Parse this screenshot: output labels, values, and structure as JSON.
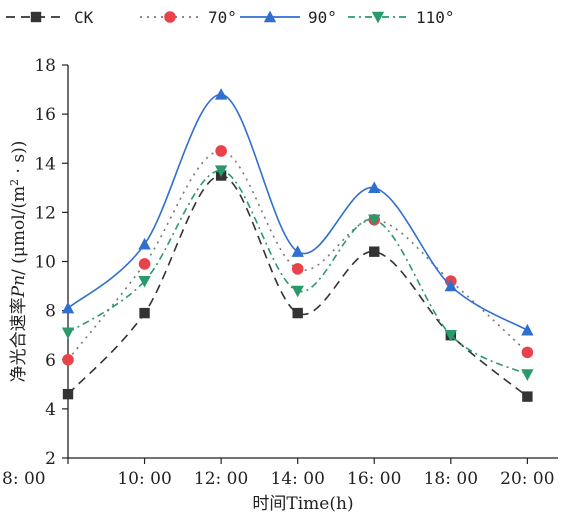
{
  "chart_data": {
    "type": "line",
    "xlabel": "时间Time(h)",
    "ylabel_parts": [
      "净光合速率",
      "Pn",
      "/ (μmol/(m",
      "2",
      " · s))"
    ],
    "x": [
      8,
      10,
      12,
      14,
      16,
      18,
      20
    ],
    "x_tick_labels": [
      "8: 00",
      "10: 00",
      "12: 00",
      "14: 00",
      "16: 00",
      "18: 00",
      "20: 00"
    ],
    "xlim": [
      8,
      20.8
    ],
    "ylim": [
      2,
      18
    ],
    "y_ticks": [
      2,
      4,
      6,
      8,
      10,
      12,
      14,
      16,
      18
    ],
    "y_tick_labels": [
      "2",
      "4",
      "6",
      "8",
      "10",
      "12",
      "14",
      "16",
      "18"
    ],
    "grid": false,
    "legend_position": "top",
    "series": [
      {
        "name": "CK",
        "values": [
          4.6,
          7.9,
          13.5,
          7.9,
          10.4,
          7.0,
          4.5
        ],
        "color": "#333333",
        "marker": "square",
        "dash": "9,6"
      },
      {
        "name": "70°",
        "values": [
          6.0,
          9.9,
          14.5,
          9.7,
          11.7,
          9.2,
          6.3
        ],
        "color": "#e8434a",
        "marker": "circle",
        "dash": "2,5",
        "line_color": "#777777"
      },
      {
        "name": "90°",
        "values": [
          8.1,
          10.7,
          16.8,
          10.4,
          13.0,
          9.0,
          7.2
        ],
        "color": "#2f6fd0",
        "marker": "triangle-up",
        "dash": ""
      },
      {
        "name": "110°",
        "values": [
          7.1,
          9.2,
          13.7,
          8.8,
          11.7,
          7.0,
          5.4
        ],
        "color": "#2a9a6a",
        "marker": "triangle-down",
        "dash": "7,4,2,4"
      }
    ]
  }
}
